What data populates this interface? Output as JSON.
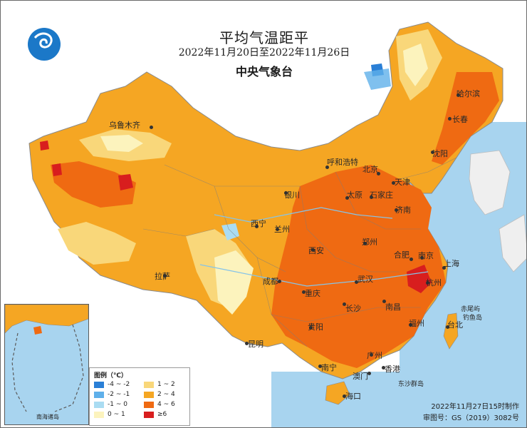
{
  "title": {
    "main": "平均气温距平",
    "date_range": "2022年11月20日至2022年11月26日",
    "organization": "中央气象台"
  },
  "legend": {
    "title": "图例（℃）",
    "items": [
      {
        "label": "-4 ~ -2",
        "color": "#2a7fd6"
      },
      {
        "label": "-2 ~ -1",
        "color": "#5fb0ea"
      },
      {
        "label": "-1 ~ 0",
        "color": "#aadcf2"
      },
      {
        "label": "0 ~ 1",
        "color": "#fcf3bd"
      },
      {
        "label": "1 ~ 2",
        "color": "#f9d77a"
      },
      {
        "label": "2 ~ 4",
        "color": "#f5a623"
      },
      {
        "label": "4 ~ 6",
        "color": "#ef6a12"
      },
      {
        "label": "≥6",
        "color": "#d81e1e"
      }
    ]
  },
  "cities": [
    {
      "name": "哈尔滨"
    },
    {
      "name": "长春"
    },
    {
      "name": "沈阳"
    },
    {
      "name": "北京"
    },
    {
      "name": "天津"
    },
    {
      "name": "呼和浩特"
    },
    {
      "name": "石家庄"
    },
    {
      "name": "太原"
    },
    {
      "name": "济南"
    },
    {
      "name": "银川"
    },
    {
      "name": "西宁"
    },
    {
      "name": "兰州"
    },
    {
      "name": "郑州"
    },
    {
      "name": "西安"
    },
    {
      "name": "合肥"
    },
    {
      "name": "南京"
    },
    {
      "name": "上海"
    },
    {
      "name": "杭州"
    },
    {
      "name": "武汉"
    },
    {
      "name": "成都"
    },
    {
      "name": "重庆"
    },
    {
      "name": "长沙"
    },
    {
      "name": "南昌"
    },
    {
      "name": "福州"
    },
    {
      "name": "台北"
    },
    {
      "name": "贵阳"
    },
    {
      "name": "昆明"
    },
    {
      "name": "拉萨"
    },
    {
      "name": "南宁"
    },
    {
      "name": "广州"
    },
    {
      "name": "香港"
    },
    {
      "name": "澳门"
    },
    {
      "name": "海口"
    },
    {
      "name": "乌鲁木齐"
    }
  ],
  "features": {
    "islands": [
      "赤尾屿",
      "钓鱼岛",
      "东沙群岛"
    ],
    "inset_label": "南海诸岛"
  },
  "credits": {
    "made": "2022年11月27日15时制作",
    "approval": "审图号：GS（2019）3082号"
  }
}
